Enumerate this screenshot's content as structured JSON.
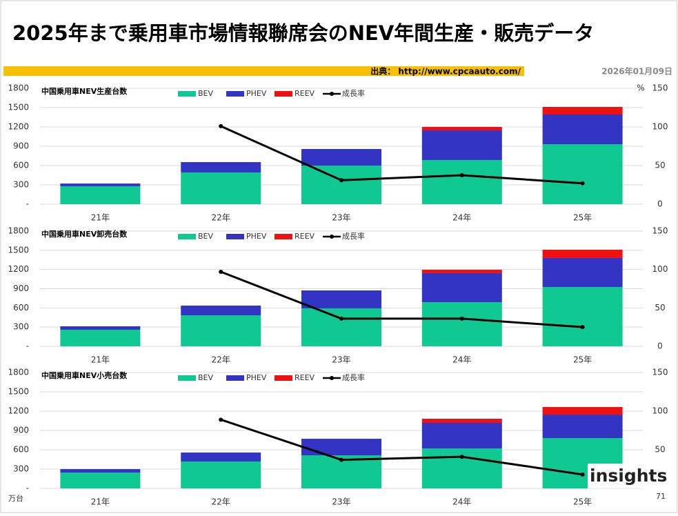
{
  "header": {
    "title": "2025年まで乗用車市場情報聯席会のNEV年間生産・販売データ",
    "source": "出典： http://www.cpcaauto.com/",
    "date": "2026年01月09日"
  },
  "footer": {
    "unit": "万台",
    "page": "71",
    "logo": "insights"
  },
  "chart_data": [
    {
      "type": "bar",
      "title": "中国乗用車NEV生産台数",
      "y2_unit": "%",
      "categories": [
        "21年",
        "22年",
        "23年",
        "24年",
        "25年"
      ],
      "series": [
        {
          "name": "BEV",
          "color": "#0fc892",
          "values": [
            279,
            493,
            600,
            686,
            932
          ]
        },
        {
          "name": "PHEV",
          "color": "#3434c4",
          "values": [
            42,
            161,
            257,
            460,
            461
          ]
        },
        {
          "name": "REEV",
          "color": "#ee1111",
          "values": [
            0,
            0,
            0,
            54,
            118
          ]
        },
        {
          "name": "成長率",
          "color": "#000000",
          "type": "line",
          "axis": "y2",
          "values": [
            null,
            101,
            31,
            37.5,
            27
          ]
        }
      ],
      "ylim": [
        0,
        1800
      ],
      "yticks": [
        {
          "value": 0,
          "label": "-"
        },
        300,
        600,
        900,
        1200,
        1500,
        1800
      ],
      "y2lim": [
        0,
        150
      ],
      "y2ticks": [
        0,
        50,
        100,
        150
      ],
      "grid": true
    },
    {
      "type": "bar",
      "title": "中国乗用車NEV卸売台数",
      "categories": [
        "21年",
        "22年",
        "23年",
        "24年",
        "25年"
      ],
      "series": [
        {
          "name": "BEV",
          "color": "#0fc892",
          "values": [
            259,
            485,
            593,
            690,
            927
          ]
        },
        {
          "name": "PHEV",
          "color": "#3434c4",
          "values": [
            54,
            151,
            280,
            453,
            453
          ]
        },
        {
          "name": "REEV",
          "color": "#ee1111",
          "values": [
            0,
            0,
            0,
            53,
            129
          ]
        },
        {
          "name": "成長率",
          "color": "#000000",
          "type": "line",
          "axis": "y2",
          "values": [
            null,
            97,
            36,
            36,
            25
          ]
        }
      ],
      "ylim": [
        0,
        1800
      ],
      "yticks": [
        {
          "value": 0,
          "label": "-"
        },
        300,
        600,
        900,
        1200,
        1500,
        1800
      ],
      "y2lim": [
        0,
        150
      ],
      "y2ticks": [
        0,
        50,
        100,
        150
      ],
      "grid": true
    },
    {
      "type": "bar",
      "title": "中国乗用車NEV小売台数",
      "categories": [
        "21年",
        "22年",
        "23年",
        "24年",
        "25年"
      ],
      "series": [
        {
          "name": "BEV",
          "color": "#0fc892",
          "values": [
            246,
            418,
            514,
            621,
            782
          ]
        },
        {
          "name": "PHEV",
          "color": "#3434c4",
          "values": [
            54,
            139,
            257,
            397,
            364
          ]
        },
        {
          "name": "REEV",
          "color": "#ee1111",
          "values": [
            0,
            0,
            0,
            64,
            118
          ]
        },
        {
          "name": "成長率",
          "color": "#000000",
          "type": "line",
          "axis": "y2",
          "values": [
            null,
            89,
            37,
            41,
            18
          ]
        }
      ],
      "ylim": [
        0,
        1800
      ],
      "yticks": [
        {
          "value": 0,
          "label": "-"
        },
        300,
        600,
        900,
        1200,
        1500,
        1800
      ],
      "y2lim": [
        0,
        150
      ],
      "y2ticks": [
        50,
        100,
        150
      ],
      "grid": true
    }
  ]
}
